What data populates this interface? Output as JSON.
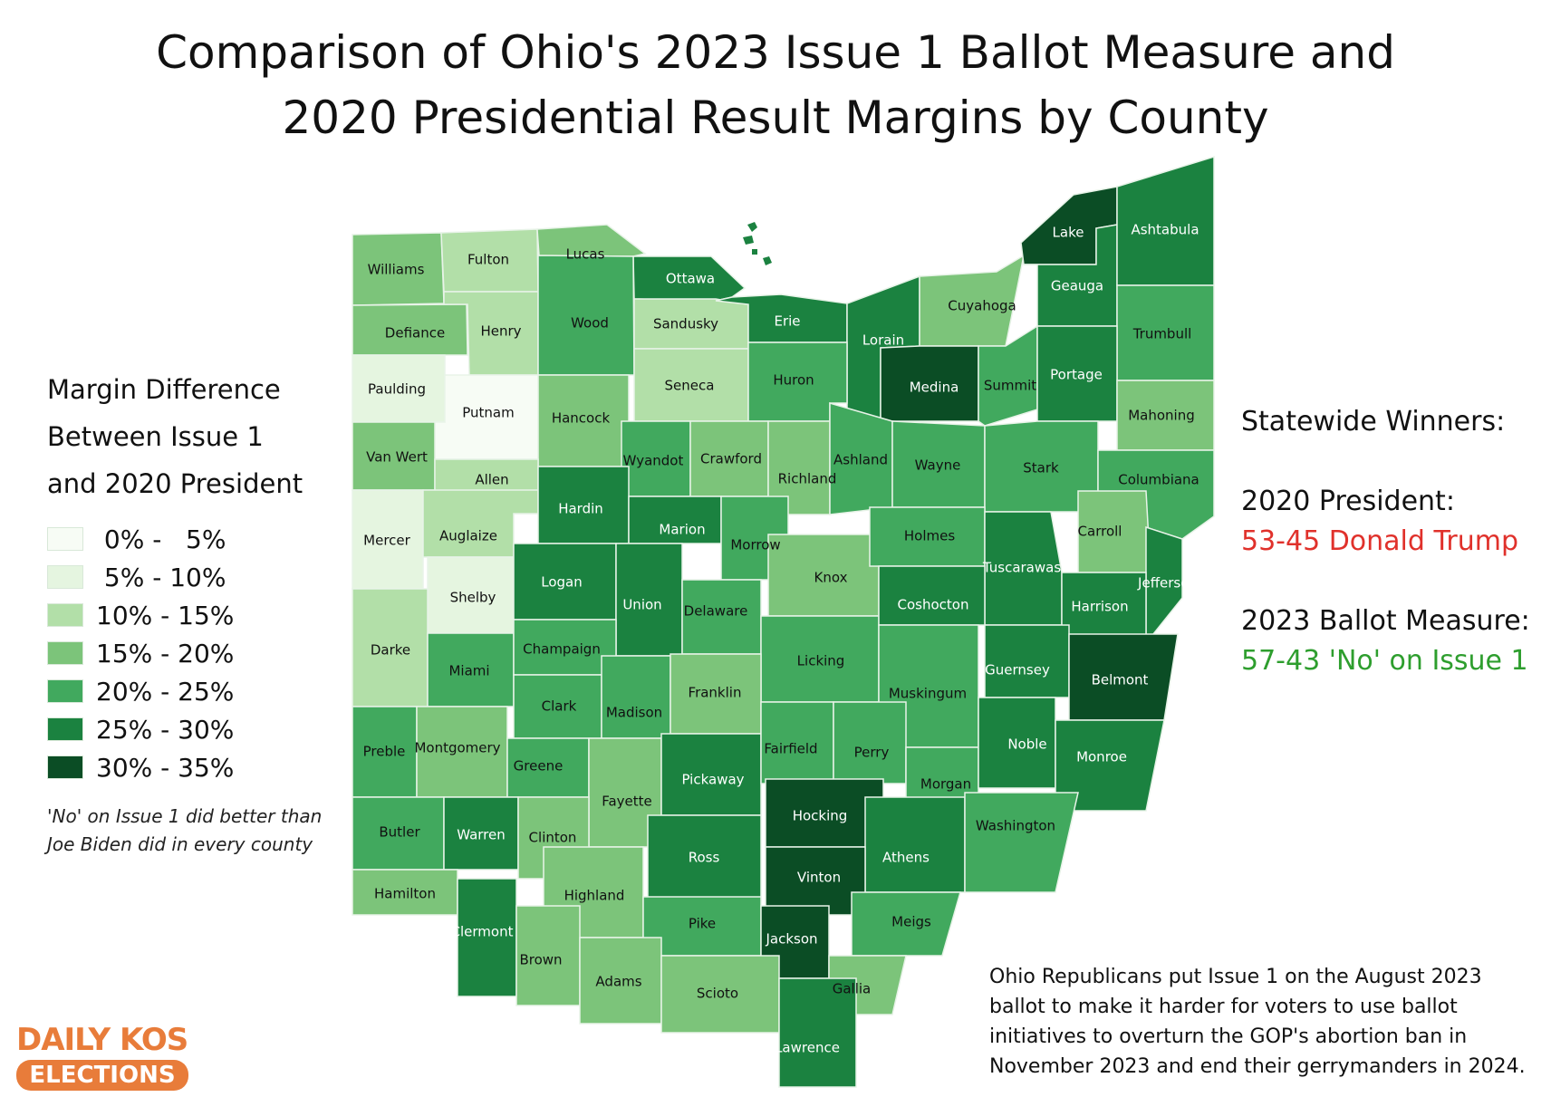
{
  "title": {
    "line1": "Comparison of Ohio's 2023 Issue 1 Ballot Measure and",
    "line2": "2020 Presidential Result Margins by County"
  },
  "legend": {
    "title_lines": [
      "Margin Difference",
      "Between Issue 1",
      "and 2020 President"
    ],
    "items": [
      {
        "label": " 0% -   5%",
        "color": "#f7fcf5"
      },
      {
        "label": " 5% - 10%",
        "color": "#e5f5e0"
      },
      {
        "label": "10% - 15%",
        "color": "#b2dfa8"
      },
      {
        "label": "15% - 20%",
        "color": "#7cc47a"
      },
      {
        "label": "20% - 25%",
        "color": "#41a95e"
      },
      {
        "label": "25% - 30%",
        "color": "#1b8240"
      },
      {
        "label": "30% - 35%",
        "color": "#0b4d25"
      }
    ],
    "note_lines": [
      "'No' on Issue 1 did better than",
      "Joe Biden did in every county"
    ]
  },
  "winners": {
    "heading": "Statewide Winners:",
    "president_label": "2020 President:",
    "president_result": "53-45 Donald Trump",
    "measure_label": "2023 Ballot Measure:",
    "measure_result": "57-43 'No' on Issue 1",
    "colors": {
      "trump": "#e0312b",
      "no": "#2e9e2e"
    }
  },
  "footnote_lines": [
    "Ohio Republicans put Issue 1 on the August 2023",
    "ballot to make it harder for voters to use ballot",
    "initiatives to overturn the GOP's abortion ban in",
    "November 2023 and end their gerrymanders in 2024."
  ],
  "logo": {
    "top": "DAILY KOS",
    "bottom": "ELECTIONS",
    "color": "#e87c3a"
  },
  "counties": [
    {
      "name": "Williams",
      "bin": 3
    },
    {
      "name": "Fulton",
      "bin": 2
    },
    {
      "name": "Lucas",
      "bin": 3
    },
    {
      "name": "Ottawa",
      "bin": 5
    },
    {
      "name": "Defiance",
      "bin": 3
    },
    {
      "name": "Henry",
      "bin": 2
    },
    {
      "name": "Wood",
      "bin": 4
    },
    {
      "name": "Sandusky",
      "bin": 2
    },
    {
      "name": "Erie",
      "bin": 5
    },
    {
      "name": "Lorain",
      "bin": 5
    },
    {
      "name": "Cuyahoga",
      "bin": 3
    },
    {
      "name": "Lake",
      "bin": 6
    },
    {
      "name": "Geauga",
      "bin": 5
    },
    {
      "name": "Ashtabula",
      "bin": 5
    },
    {
      "name": "Trumbull",
      "bin": 4
    },
    {
      "name": "Paulding",
      "bin": 1
    },
    {
      "name": "Putnam",
      "bin": 0
    },
    {
      "name": "Hancock",
      "bin": 3
    },
    {
      "name": "Seneca",
      "bin": 2
    },
    {
      "name": "Huron",
      "bin": 4
    },
    {
      "name": "Medina",
      "bin": 6
    },
    {
      "name": "Summit",
      "bin": 4
    },
    {
      "name": "Portage",
      "bin": 5
    },
    {
      "name": "Mahoning",
      "bin": 3
    },
    {
      "name": "Van Wert",
      "bin": 3
    },
    {
      "name": "Allen",
      "bin": 2
    },
    {
      "name": "Wyandot",
      "bin": 4
    },
    {
      "name": "Crawford",
      "bin": 3
    },
    {
      "name": "Richland",
      "bin": 3
    },
    {
      "name": "Ashland",
      "bin": 4
    },
    {
      "name": "Wayne",
      "bin": 4
    },
    {
      "name": "Stark",
      "bin": 4
    },
    {
      "name": "Columbiana",
      "bin": 4
    },
    {
      "name": "Mercer",
      "bin": 1
    },
    {
      "name": "Auglaize",
      "bin": 2
    },
    {
      "name": "Hardin",
      "bin": 5
    },
    {
      "name": "Marion",
      "bin": 5
    },
    {
      "name": "Morrow",
      "bin": 4
    },
    {
      "name": "Knox",
      "bin": 3
    },
    {
      "name": "Holmes",
      "bin": 4
    },
    {
      "name": "Tuscarawas",
      "bin": 5
    },
    {
      "name": "Carroll",
      "bin": 3
    },
    {
      "name": "Jefferson",
      "bin": 5
    },
    {
      "name": "Shelby",
      "bin": 1
    },
    {
      "name": "Logan",
      "bin": 5
    },
    {
      "name": "Union",
      "bin": 5
    },
    {
      "name": "Delaware",
      "bin": 4
    },
    {
      "name": "Licking",
      "bin": 4
    },
    {
      "name": "Coshocton",
      "bin": 5
    },
    {
      "name": "Harrison",
      "bin": 5
    },
    {
      "name": "Darke",
      "bin": 2
    },
    {
      "name": "Miami",
      "bin": 4
    },
    {
      "name": "Champaign",
      "bin": 4
    },
    {
      "name": "Clark",
      "bin": 4
    },
    {
      "name": "Madison",
      "bin": 4
    },
    {
      "name": "Franklin",
      "bin": 3
    },
    {
      "name": "Muskingum",
      "bin": 4
    },
    {
      "name": "Guernsey",
      "bin": 5
    },
    {
      "name": "Belmont",
      "bin": 6
    },
    {
      "name": "Preble",
      "bin": 4
    },
    {
      "name": "Montgomery",
      "bin": 3
    },
    {
      "name": "Greene",
      "bin": 4
    },
    {
      "name": "Fayette",
      "bin": 3
    },
    {
      "name": "Pickaway",
      "bin": 5
    },
    {
      "name": "Fairfield",
      "bin": 4
    },
    {
      "name": "Perry",
      "bin": 4
    },
    {
      "name": "Morgan",
      "bin": 4
    },
    {
      "name": "Noble",
      "bin": 5
    },
    {
      "name": "Monroe",
      "bin": 5
    },
    {
      "name": "Butler",
      "bin": 4
    },
    {
      "name": "Warren",
      "bin": 5
    },
    {
      "name": "Clinton",
      "bin": 3
    },
    {
      "name": "Ross",
      "bin": 5
    },
    {
      "name": "Hocking",
      "bin": 6
    },
    {
      "name": "Athens",
      "bin": 5
    },
    {
      "name": "Washington",
      "bin": 4
    },
    {
      "name": "Hamilton",
      "bin": 3
    },
    {
      "name": "Clermont",
      "bin": 5
    },
    {
      "name": "Highland",
      "bin": 3
    },
    {
      "name": "Vinton",
      "bin": 6
    },
    {
      "name": "Pike",
      "bin": 4
    },
    {
      "name": "Jackson",
      "bin": 6
    },
    {
      "name": "Meigs",
      "bin": 4
    },
    {
      "name": "Brown",
      "bin": 3
    },
    {
      "name": "Adams",
      "bin": 3
    },
    {
      "name": "Scioto",
      "bin": 3
    },
    {
      "name": "Gallia",
      "bin": 3
    },
    {
      "name": "Lawrence",
      "bin": 5
    }
  ]
}
